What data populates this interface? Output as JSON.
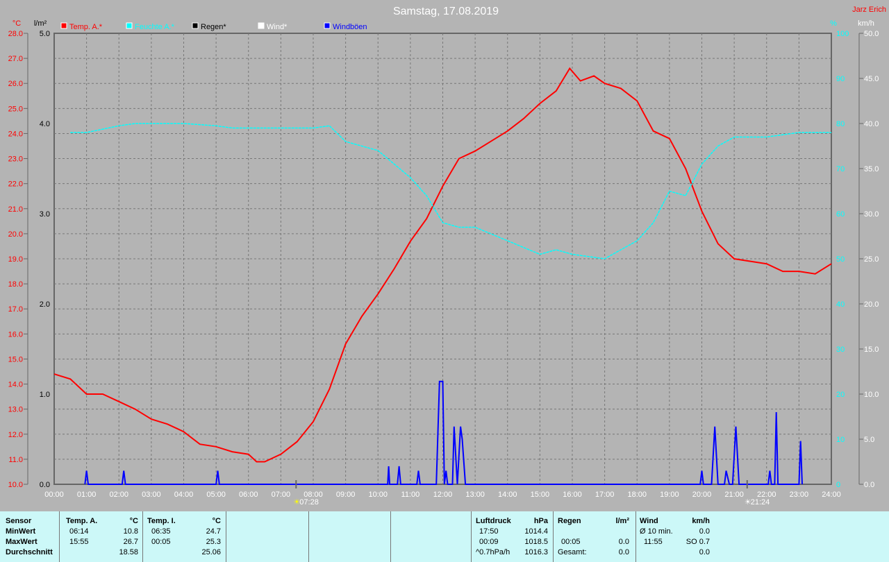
{
  "title": "Samstag, 17.08.2019",
  "author": "Jarz Erich",
  "colors": {
    "temp": "#ff0000",
    "humidity": "#00ffff",
    "rain": "#000000",
    "wind": "#ffffff",
    "gust": "#0000ff",
    "background": "#b4b4b4",
    "panel": "#ccf8f8"
  },
  "chart_data": {
    "type": "line",
    "title": "Samstag, 17.08.2019",
    "legend": [
      "Temp. A.*",
      "Feuchte A.*",
      "Regen*",
      "Wind*",
      "Windböen"
    ],
    "legend_placement": "top",
    "grid": true,
    "x_ticks": [
      "00:00",
      "01:00",
      "02:00",
      "03:00",
      "04:00",
      "05:00",
      "06:00",
      "07:00",
      "08:00",
      "09:00",
      "10:00",
      "11:00",
      "12:00",
      "13:00",
      "14:00",
      "15:00",
      "16:00",
      "17:00",
      "18:00",
      "19:00",
      "20:00",
      "21:00",
      "22:00",
      "23:00",
      "24:00"
    ],
    "axes": {
      "temp": {
        "unit": "°C",
        "range": [
          10,
          28
        ],
        "step": 1
      },
      "rain": {
        "unit": "l/m²",
        "range": [
          0,
          5
        ],
        "step": 1
      },
      "humidity": {
        "unit": "%",
        "range": [
          0,
          100
        ],
        "step": 10
      },
      "wind": {
        "unit": "km/h",
        "range": [
          0,
          50
        ],
        "step": 5
      }
    },
    "series": [
      {
        "name": "Temp. A.*",
        "axis": "temp",
        "x": [
          0,
          0.5,
          1,
          1.5,
          2,
          2.5,
          3,
          3.5,
          4,
          4.5,
          5,
          5.5,
          6,
          6.25,
          6.5,
          7,
          7.5,
          8,
          8.5,
          9,
          9.5,
          10,
          10.5,
          11,
          11.5,
          12,
          12.5,
          13,
          13.5,
          14,
          14.5,
          15,
          15.5,
          15.92,
          16.25,
          16.67,
          17,
          17.5,
          18,
          18.5,
          19,
          19.5,
          20,
          20.5,
          21,
          21.5,
          22,
          22.5,
          23,
          23.5,
          24
        ],
        "y": [
          14.4,
          14.2,
          13.6,
          13.6,
          13.3,
          13.0,
          12.6,
          12.4,
          12.1,
          11.6,
          11.5,
          11.3,
          11.2,
          10.9,
          10.9,
          11.2,
          11.7,
          12.5,
          13.8,
          15.6,
          16.7,
          17.6,
          18.6,
          19.7,
          20.6,
          21.9,
          23.0,
          23.3,
          23.7,
          24.1,
          24.6,
          25.2,
          25.7,
          26.6,
          26.1,
          26.3,
          26.0,
          25.8,
          25.3,
          24.1,
          23.8,
          22.6,
          20.9,
          19.6,
          19.0,
          18.9,
          18.8,
          18.5,
          18.5,
          18.4,
          18.8
        ]
      },
      {
        "name": "Feuchte A.*",
        "axis": "humidity",
        "x": [
          0.5,
          1,
          2,
          2.5,
          3,
          4,
          5,
          5.5,
          6,
          7,
          8,
          8.5,
          9,
          10,
          11,
          11.5,
          12,
          12.5,
          13,
          14,
          15,
          15.5,
          16,
          17,
          17.5,
          18,
          18.5,
          19,
          19.5,
          20,
          20.5,
          21,
          22,
          23,
          24
        ],
        "y": [
          78,
          78,
          79.5,
          80,
          80,
          80,
          79.5,
          79,
          79,
          79,
          79,
          79.5,
          76,
          74,
          68,
          64,
          58,
          57,
          57,
          54,
          51,
          52,
          51,
          50,
          52,
          54,
          58,
          65,
          64,
          71,
          75,
          77,
          77,
          78,
          78
        ]
      },
      {
        "name": "Windböen",
        "axis": "wind",
        "x": [
          0.95,
          1,
          1.05,
          2.1,
          2.15,
          2.2,
          5.0,
          5.05,
          5.1,
          10.3,
          10.33,
          10.36,
          10.6,
          10.65,
          10.7,
          11.2,
          11.25,
          11.3,
          11.8,
          11.9,
          12.0,
          12.05,
          12.1,
          12.15,
          12.3,
          12.35,
          12.45,
          12.55,
          12.6,
          12.7,
          19.95,
          20.0,
          20.05,
          20.3,
          20.4,
          20.5,
          20.7,
          20.75,
          20.85,
          20.95,
          21.05,
          21.15,
          22.05,
          22.1,
          22.15,
          22.25,
          22.3,
          22.35,
          23.0,
          23.05,
          23.1
        ],
        "y": [
          0,
          1.5,
          0,
          0,
          1.5,
          0,
          0,
          1.5,
          0,
          0,
          2,
          0,
          0,
          2,
          0,
          0,
          1.5,
          0,
          0,
          11.4,
          11.4,
          0,
          1.5,
          0,
          0,
          6.4,
          0,
          6.4,
          5,
          0,
          0,
          1.5,
          0,
          0,
          6.4,
          0,
          0,
          1.5,
          0,
          0,
          6.4,
          0,
          0,
          1.5,
          0,
          0,
          8,
          0,
          0,
          4.8,
          0
        ]
      },
      {
        "name": "Regen*",
        "axis": "rain",
        "x": [],
        "y": []
      },
      {
        "name": "Wind*",
        "axis": "wind",
        "x": [],
        "y": []
      }
    ],
    "annotations": [
      {
        "label": "07:28",
        "type": "sunrise",
        "x": 7.47
      },
      {
        "label": "21:24",
        "type": "sunset",
        "x": 21.4
      }
    ]
  },
  "panel": {
    "sensor": {
      "h": "Sensor",
      "min": "MinWert",
      "max": "MaxWert",
      "avg": "Durchschnitt"
    },
    "tempA": {
      "h": "Temp. A.",
      "u": "°C",
      "min_t": "06:14",
      "min": "10.8",
      "max_t": "15:55",
      "max": "26.7",
      "avg": "18.58"
    },
    "tempI": {
      "h": "Temp. I.",
      "u": "°C",
      "min_t": "06:35",
      "min": "24.7",
      "max_t": "00:05",
      "max": "25.3",
      "avg": "25.06"
    },
    "press": {
      "h": "Luftdruck",
      "u": "hPa",
      "min_t": "17:50",
      "min": "1014.4",
      "max_t": "00:09",
      "max": "1018.5",
      "trend": "^0.7hPa/h",
      "avg": "1016.3"
    },
    "rain": {
      "h": "Regen",
      "u": "l/m²",
      "max_t": "00:05",
      "max": "0.0",
      "tot_l": "Gesamt:",
      "tot": "0.0"
    },
    "wind": {
      "h": "Wind",
      "u": "km/h",
      "avg_l": "Ø 10 min.",
      "avg": "0.0",
      "max_t": "11:55",
      "max": "SO 0.7",
      "last": "0.0"
    }
  }
}
